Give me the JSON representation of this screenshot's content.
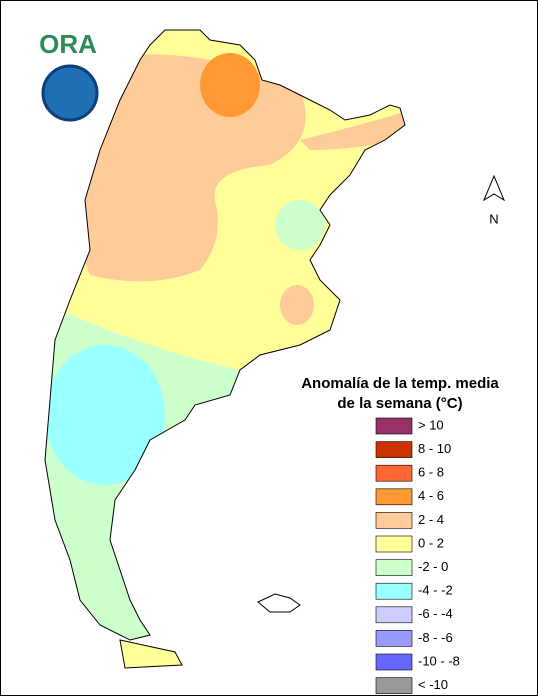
{
  "logo": {
    "text": "ORA"
  },
  "compass": {
    "label": "N"
  },
  "legend": {
    "title_lines": [
      "Anomalía de la temp. media",
      "de la semana (°C)"
    ],
    "items": [
      {
        "label": "> 10",
        "color": "#993366"
      },
      {
        "label": "8 - 10",
        "color": "#cc3300"
      },
      {
        "label": "6 - 8",
        "color": "#ff6633"
      },
      {
        "label": "4 - 6",
        "color": "#ff9933"
      },
      {
        "label": "2 - 4",
        "color": "#ffcc99"
      },
      {
        "label": "0 - 2",
        "color": "#ffff99"
      },
      {
        "label": "-2 - 0",
        "color": "#ccffcc"
      },
      {
        "label": "-4 - -2",
        "color": "#99ffff"
      },
      {
        "label": "-6 - -4",
        "color": "#ccccff"
      },
      {
        "label": "-8 - -6",
        "color": "#9999ff"
      },
      {
        "label": "-10 - -8",
        "color": "#6666ff"
      },
      {
        "label": "< -10",
        "color": "#999999"
      }
    ]
  }
}
